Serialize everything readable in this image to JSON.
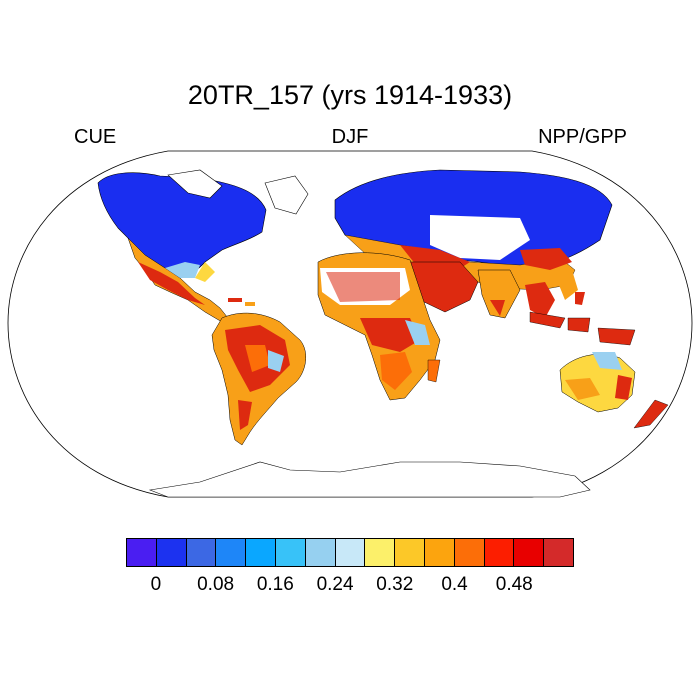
{
  "title": "20TR_157 (yrs 1914-1933)",
  "left_label": "CUE",
  "center_label": "DJF",
  "right_label": "NPP/GPP",
  "colors": {
    "ocean": "#ffffff",
    "land_outline": "#000000",
    "cold": "#1a2ef0",
    "warm_orange": "#f8a018",
    "hot_red": "#dd2a10",
    "light_blue": "#9ad0f0",
    "yellow": "#fdd840"
  },
  "colorbar": {
    "colors": [
      "#4a1ef2",
      "#1c32f0",
      "#3c68e4",
      "#1e86f8",
      "#0aa7ff",
      "#38c2f8",
      "#96d0f0",
      "#c8e8f8",
      "#fcf06a",
      "#fcc828",
      "#fca40e",
      "#fc6e08",
      "#fc1e00",
      "#e80000",
      "#d42a2a"
    ],
    "tick_labels": [
      "0",
      "0.08",
      "0.16",
      "0.24",
      "0.32",
      "0.4",
      "0.48"
    ]
  }
}
